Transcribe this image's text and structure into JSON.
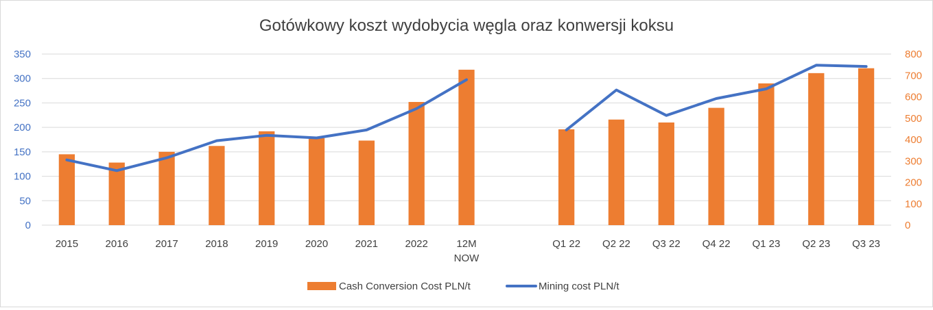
{
  "chart_data": {
    "type": "bar+line",
    "title": "Gotówkowy koszt wydobycia węgla oraz konwersji koksu",
    "categories": [
      "2015",
      "2016",
      "2017",
      "2018",
      "2019",
      "2020",
      "2021",
      "2022",
      "12M NOW",
      "",
      "Q1 22",
      "Q2 22",
      "Q3 22",
      "Q4 22",
      "Q1 23",
      "Q2 23",
      "Q3 23"
    ],
    "category_lines": [
      [
        "2015"
      ],
      [
        "2016"
      ],
      [
        "2017"
      ],
      [
        "2018"
      ],
      [
        "2019"
      ],
      [
        "2020"
      ],
      [
        "2021"
      ],
      [
        "2022"
      ],
      [
        "12M",
        "NOW"
      ],
      [],
      [
        "Q1 22"
      ],
      [
        "Q2 22"
      ],
      [
        "Q3 22"
      ],
      [
        "Q4 22"
      ],
      [
        "Q1 23"
      ],
      [
        "Q2 23"
      ],
      [
        "Q3 23"
      ]
    ],
    "y_left": {
      "ticks": [
        "0",
        "50",
        "100",
        "150",
        "200",
        "250",
        "300",
        "350"
      ],
      "min": 0,
      "max": 350,
      "color": "#4472c4"
    },
    "y_right": {
      "ticks": [
        "0",
        "100",
        "200",
        "300",
        "400",
        "500",
        "600",
        "700",
        "800"
      ],
      "min": 0,
      "max": 800,
      "color": "#ed7d31"
    },
    "grid": true,
    "legend_position": "bottom",
    "series": [
      {
        "name": "Cash Conversion Cost PLN/t",
        "type": "bar",
        "axis": "left",
        "color": "#ed7d31",
        "values": [
          145,
          128,
          150,
          162,
          192,
          178,
          173,
          252,
          318,
          null,
          196,
          216,
          210,
          240,
          290,
          311,
          321
        ]
      },
      {
        "name": "Mining cost PLN/t",
        "type": "line",
        "axis": "right",
        "color": "#4472c4",
        "values": [
          305,
          255,
          315,
          395,
          420,
          408,
          445,
          545,
          680,
          null,
          445,
          632,
          513,
          592,
          637,
          748,
          742
        ]
      }
    ]
  }
}
